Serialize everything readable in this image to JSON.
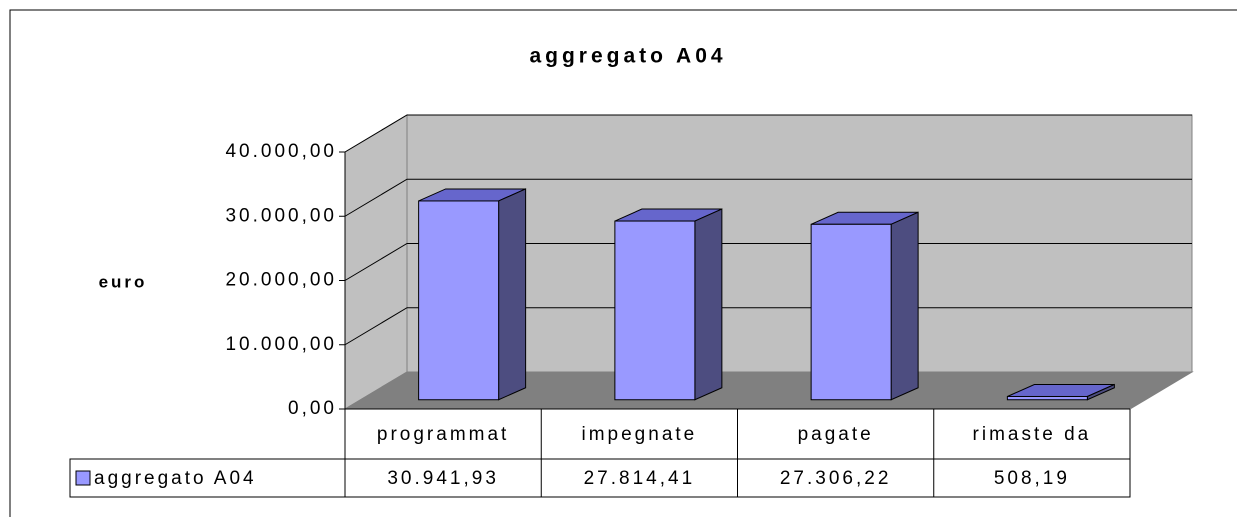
{
  "chart_data": {
    "type": "bar3d",
    "title": "aggregato A04",
    "y_label": "euro",
    "categories": [
      "programmat",
      "impegnate",
      "pagate",
      "rimaste da"
    ],
    "series": [
      {
        "name": "aggregato A04",
        "color": "#9999ff",
        "values": [
          30941.93,
          27814.41,
          27306.22,
          508.19
        ],
        "value_labels": [
          "30.941,93",
          "27.814,41",
          "27.306,22",
          "508,19"
        ]
      }
    ],
    "ylim": [
      0,
      40000
    ],
    "yticks": [
      {
        "value": 0,
        "label": "0,00"
      },
      {
        "value": 10000,
        "label": "10.000,00"
      },
      {
        "value": 20000,
        "label": "20.000,00"
      },
      {
        "value": 30000,
        "label": "30.000,00"
      },
      {
        "value": 40000,
        "label": "40.000,00"
      }
    ],
    "grid": true
  }
}
